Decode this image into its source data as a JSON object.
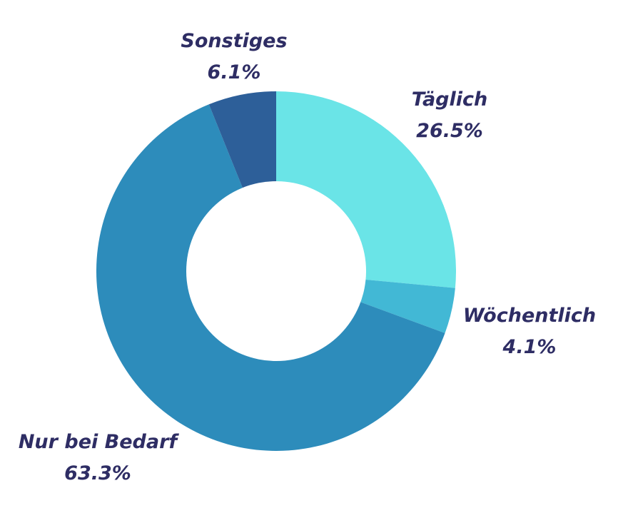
{
  "chart_data": {
    "type": "pie",
    "variant": "donut",
    "start_angle_deg": 0,
    "direction": "clockwise",
    "label_color": "#2e2d64",
    "slices": [
      {
        "name": "Täglich",
        "value": 26.5,
        "value_label": "26.5%",
        "color": "#6ae4e7"
      },
      {
        "name": "Wöchentlich",
        "value": 4.1,
        "value_label": "4.1%",
        "color": "#42b8d5"
      },
      {
        "name": "Nur bei Bedarf",
        "value": 63.3,
        "value_label": "63.3%",
        "color": "#2d8cbb"
      },
      {
        "name": "Sonstiges",
        "value": 6.1,
        "value_label": "6.1%",
        "color": "#2d5f99"
      }
    ],
    "legend": "none"
  }
}
